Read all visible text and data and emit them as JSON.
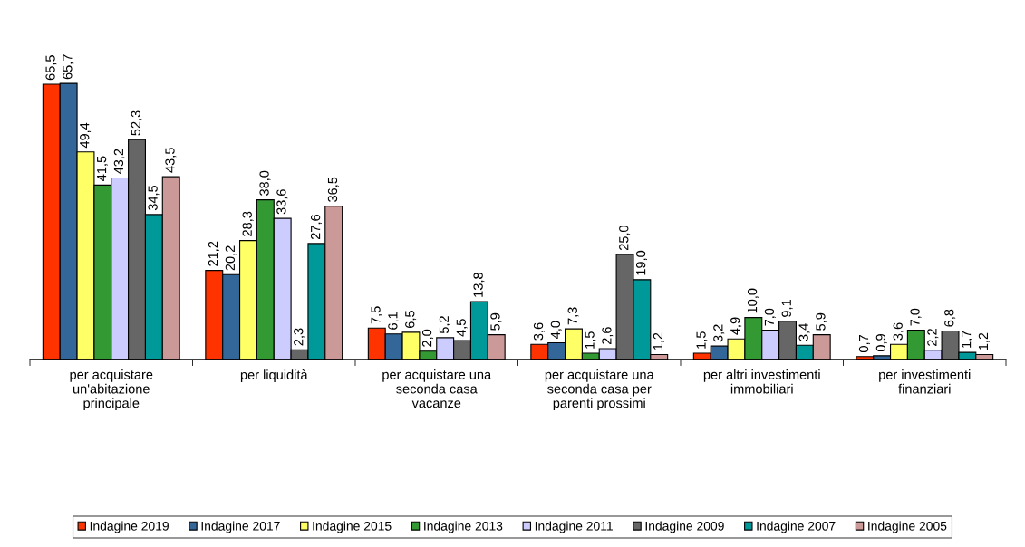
{
  "chart_data": {
    "type": "bar",
    "categories": [
      "per acquistare\nun'abitazione\nprincipale",
      "per liquidità",
      "per acquistare una\nseconda casa\nvacanze",
      "per acquistare una\nseconda casa per\nparenti prossimi",
      "per altri investimenti\nimmobiliari",
      "per investimenti\nfinanziari"
    ],
    "series": [
      {
        "name": "Indagine 2019",
        "color": "#ff3300",
        "values": [
          65.5,
          21.2,
          7.5,
          3.6,
          1.5,
          0.7
        ],
        "value_labels": [
          "65,5",
          "21,2",
          "7,5",
          "3,6",
          "1,5",
          "0,7"
        ]
      },
      {
        "name": "Indagine 2017",
        "color": "#336699",
        "values": [
          65.7,
          20.2,
          6.1,
          4.0,
          3.2,
          0.9
        ],
        "value_labels": [
          "65,7",
          "20,2",
          "6,1",
          "4,0",
          "3,2",
          "0,9"
        ]
      },
      {
        "name": "Indagine 2015",
        "color": "#ffff66",
        "values": [
          49.4,
          28.3,
          6.5,
          7.3,
          4.9,
          3.6
        ],
        "value_labels": [
          "49,4",
          "28,3",
          "6,5",
          "7,3",
          "4,9",
          "3,6"
        ]
      },
      {
        "name": "Indagine 2013",
        "color": "#339933",
        "values": [
          41.5,
          38.0,
          2.0,
          1.5,
          10.0,
          7.0
        ],
        "value_labels": [
          "41,5",
          "38,0",
          "2,0",
          "1,5",
          "10,0",
          "7,0"
        ]
      },
      {
        "name": "Indagine 2011",
        "color": "#ccccff",
        "values": [
          43.2,
          33.6,
          5.2,
          2.6,
          7.0,
          2.2
        ],
        "value_labels": [
          "43,2",
          "33,6",
          "5,2",
          "2,6",
          "7,0",
          "2,2"
        ]
      },
      {
        "name": "Indagine 2009",
        "color": "#666666",
        "values": [
          52.3,
          2.3,
          4.5,
          25.0,
          9.1,
          6.8
        ],
        "value_labels": [
          "52,3",
          "2,3",
          "4,5",
          "25,0",
          "9,1",
          "6,8"
        ]
      },
      {
        "name": "Indagine 2007",
        "color": "#009999",
        "values": [
          34.5,
          27.6,
          13.8,
          19.0,
          3.4,
          1.7
        ],
        "value_labels": [
          "34,5",
          "27,6",
          "13,8",
          "19,0",
          "3,4",
          "1,7"
        ]
      },
      {
        "name": "Indagine 2005",
        "color": "#cc9999",
        "values": [
          43.5,
          36.5,
          5.9,
          1.2,
          5.9,
          1.2
        ],
        "value_labels": [
          "43,5",
          "36,5",
          "5,9",
          "1,2",
          "5,9",
          "1,2"
        ]
      }
    ],
    "legend": "bottom",
    "grid": false
  }
}
